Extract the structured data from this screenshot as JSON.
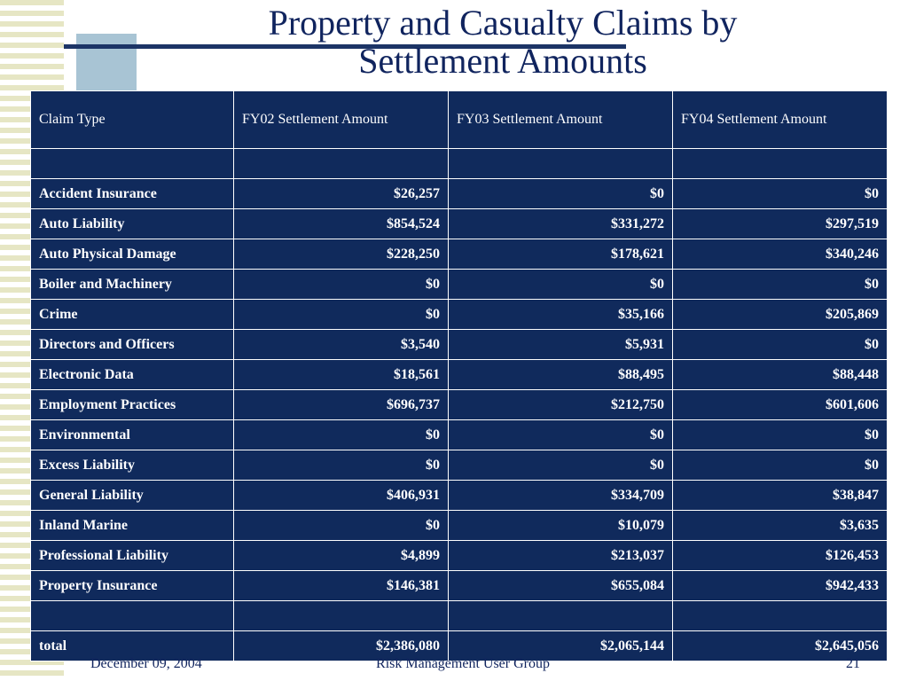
{
  "slide": {
    "title_line1": "Property and Casualty Claims by",
    "title_line2": "Settlement Amounts"
  },
  "table": {
    "headers": [
      "Claim Type",
      "FY02 Settlement Amount",
      "FY03 Settlement Amount",
      "FY04 Settlement Amount"
    ],
    "rows": [
      [
        "",
        "",
        "",
        ""
      ],
      [
        "Accident Insurance",
        "$26,257",
        "$0",
        "$0"
      ],
      [
        "Auto Liability",
        "$854,524",
        "$331,272",
        "$297,519"
      ],
      [
        "Auto Physical Damage",
        "$228,250",
        "$178,621",
        "$340,246"
      ],
      [
        "Boiler and Machinery",
        "$0",
        "$0",
        "$0"
      ],
      [
        "Crime",
        "$0",
        "$35,166",
        "$205,869"
      ],
      [
        "Directors and Officers",
        "$3,540",
        "$5,931",
        "$0"
      ],
      [
        "Electronic Data",
        "$18,561",
        "$88,495",
        "$88,448"
      ],
      [
        "Employment Practices",
        "$696,737",
        "$212,750",
        "$601,606"
      ],
      [
        "Environmental",
        "$0",
        "$0",
        "$0"
      ],
      [
        "Excess Liability",
        "$0",
        "$0",
        "$0"
      ],
      [
        "General Liability",
        "$406,931",
        "$334,709",
        "$38,847"
      ],
      [
        "Inland Marine",
        "$0",
        "$10,079",
        "$3,635"
      ],
      [
        "Professional Liability",
        "$4,899",
        "$213,037",
        "$126,453"
      ],
      [
        "Property Insurance",
        "$146,381",
        "$655,084",
        "$942,433"
      ],
      [
        "",
        "",
        "",
        ""
      ],
      [
        "total",
        "$2,386,080",
        "$2,065,144",
        "$2,645,056"
      ]
    ]
  },
  "footer": {
    "date": "December 09, 2004",
    "group": "Risk Management User Group",
    "page_number": "21"
  },
  "colors": {
    "table_background": "#102a5c",
    "title_text": "#10245e",
    "accent_line": "#1c3466",
    "accent_square": "#a8c4d4",
    "stripe": "#e6e6c4"
  }
}
